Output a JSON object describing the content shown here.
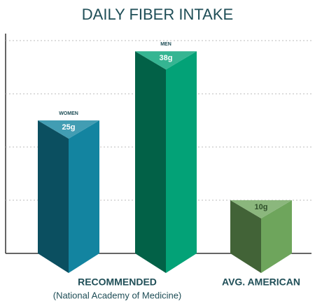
{
  "chart_data": {
    "type": "prism-bar",
    "title": "DAILY FIBER INTAKE",
    "categories": [
      "WOMEN",
      "MEN",
      null
    ],
    "values": [
      25,
      38,
      10
    ],
    "value_labels": [
      "25g",
      "38g",
      "10g"
    ],
    "colors": [
      "#1384a0",
      "#03a277",
      "#6ea55c"
    ],
    "groups": [
      {
        "name": "RECOMMENDED",
        "subtitle": "(National Academy of Medicine)"
      },
      {
        "name": "AVG. AMERICAN"
      }
    ],
    "ylim": [
      0,
      40
    ],
    "yticks": [
      10,
      20,
      30,
      40
    ],
    "grid": true
  }
}
